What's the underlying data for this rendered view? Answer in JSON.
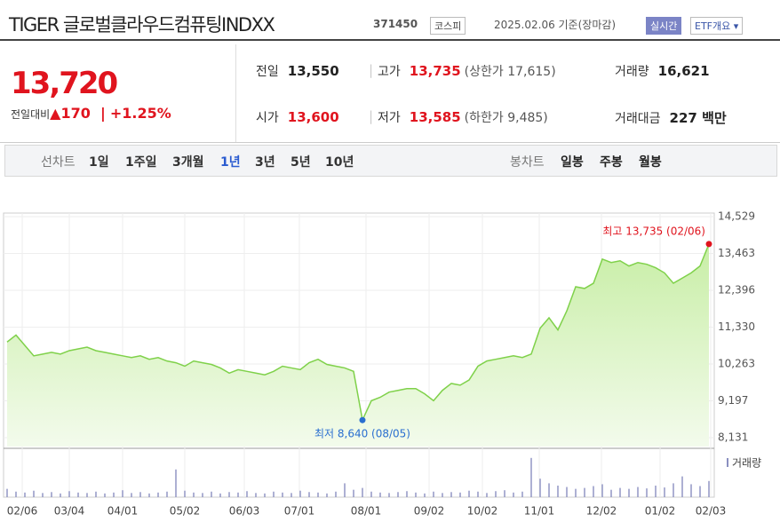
{
  "header": {
    "title": "TIGER 글로벌클라우드컴퓨팅INDXX",
    "code": "371450",
    "market": "코스피",
    "date": "2025.02.06 기준(장마감)",
    "realtime": "실시간",
    "etf": "ETF개요"
  },
  "price": {
    "current": "13,720",
    "change_label": "전일대비",
    "change": "170",
    "rate": "+1.25%"
  },
  "stats": [
    [
      {
        "label": "전일",
        "value": "13,550"
      },
      {
        "label": "고가",
        "value": "13,735",
        "note": "(상한가 17,615)",
        "red": true
      },
      {
        "label": "거래량",
        "value": "16,621"
      }
    ],
    [
      {
        "label": "시가",
        "value": "13,600",
        "red": true
      },
      {
        "label": "저가",
        "value": "13,585",
        "note": "(하한가 9,485)",
        "red": true
      },
      {
        "label": "거래대금",
        "value": "227 백만"
      }
    ]
  ],
  "tabs": {
    "line_label": "선차트",
    "line": [
      "1일",
      "1주일",
      "3개월",
      "1년",
      "3년",
      "5년",
      "10년"
    ],
    "active": "1년",
    "candle_label": "봉차트",
    "candle": [
      "일봉",
      "주봉",
      "월봉"
    ]
  },
  "chart_data": {
    "type": "area",
    "color": "#7fd14a",
    "values": [
      10900,
      11100,
      10800,
      10500,
      10550,
      10600,
      10550,
      10650,
      10700,
      10750,
      10650,
      10600,
      10550,
      10500,
      10450,
      10500,
      10400,
      10450,
      10350,
      10300,
      10200,
      10350,
      10300,
      10250,
      10150,
      10000,
      10100,
      10050,
      10000,
      9950,
      10050,
      10200,
      10150,
      10100,
      10300,
      10400,
      10250,
      10200,
      10150,
      10050,
      8640,
      9200,
      9300,
      9450,
      9500,
      9550,
      9550,
      9400,
      9200,
      9500,
      9700,
      9650,
      9800,
      10200,
      10350,
      10400,
      10450,
      10500,
      10450,
      10550,
      11300,
      11600,
      11250,
      11800,
      12500,
      12450,
      12600,
      13300,
      13200,
      13250,
      13100,
      13200,
      13150,
      13050,
      12900,
      12600,
      12750,
      12900,
      13100,
      13735
    ],
    "ylim": [
      8131,
      14529
    ],
    "yticks": [
      {
        "value": 8131,
        "label": "8,131"
      },
      {
        "value": 9197,
        "label": "9,197"
      },
      {
        "value": 10263,
        "label": "10,263"
      },
      {
        "value": 11330,
        "label": "11,330"
      },
      {
        "value": 12396,
        "label": "12,396"
      },
      {
        "value": 13463,
        "label": "13,463"
      },
      {
        "value": 14529,
        "label": "14,529"
      }
    ],
    "xlim": [
      0,
      79
    ],
    "xticks": [
      {
        "value": 1.7,
        "label": "02/06"
      },
      {
        "value": 7,
        "label": "03/04"
      },
      {
        "value": 13,
        "label": "04/01"
      },
      {
        "value": 20,
        "label": "05/02"
      },
      {
        "value": 26.7,
        "label": "06/03"
      },
      {
        "value": 32.9,
        "label": "07/01"
      },
      {
        "value": 40.4,
        "label": "08/01"
      },
      {
        "value": 47.5,
        "label": "09/02"
      },
      {
        "value": 53.5,
        "label": "10/02"
      },
      {
        "value": 59.9,
        "label": "11/01"
      },
      {
        "value": 66.9,
        "label": "12/02"
      },
      {
        "value": 73.5,
        "label": "01/02"
      },
      {
        "value": 79.2,
        "label": "02/03"
      }
    ],
    "low_label": "최저 8,640 (08/05)",
    "high_label": "최고 13,735 (02/06)",
    "volume_label": "거래량",
    "volume_color": "#8a8fc0",
    "volume": [
      18,
      12,
      10,
      14,
      9,
      11,
      8,
      13,
      10,
      9,
      12,
      8,
      10,
      15,
      9,
      11,
      8,
      10,
      12,
      60,
      14,
      10,
      9,
      12,
      8,
      11,
      10,
      13,
      9,
      8,
      12,
      10,
      9,
      14,
      11,
      10,
      8,
      12,
      30,
      16,
      20,
      12,
      10,
      9,
      11,
      13,
      10,
      8,
      12,
      9,
      11,
      10,
      14,
      12,
      9,
      13,
      15,
      10,
      12,
      85,
      40,
      30,
      25,
      22,
      18,
      20,
      24,
      28,
      16,
      20,
      18,
      22,
      19,
      25,
      21,
      30,
      45,
      28,
      24,
      35
    ],
    "vlim": [
      0,
      100
    ]
  }
}
